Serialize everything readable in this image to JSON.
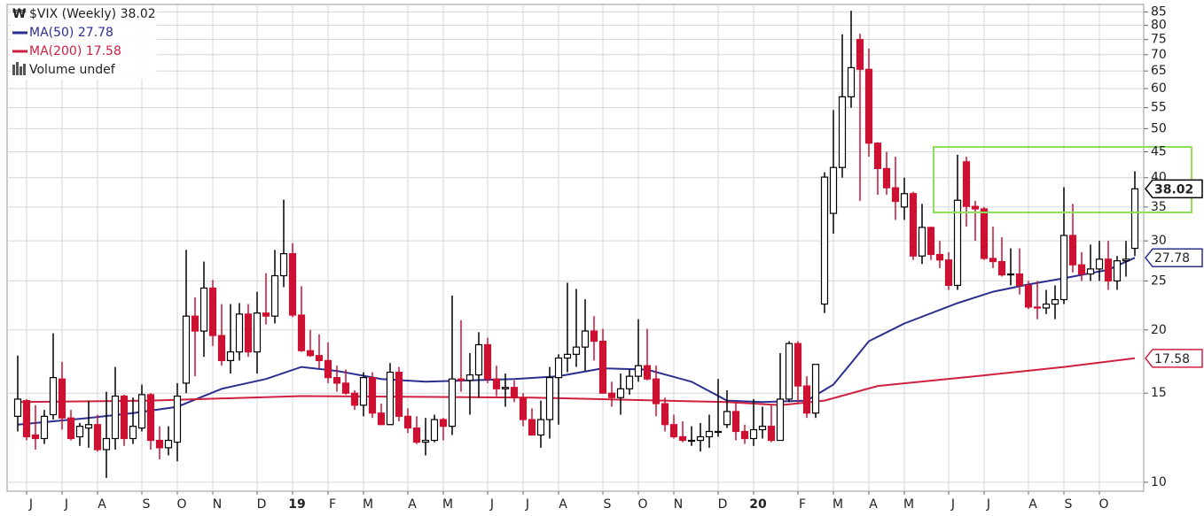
{
  "chart_data": {
    "type": "candlestick",
    "title": "$VIX (Weekly)",
    "volume_label": "Volume undef",
    "up_color": "#000000",
    "down_color": "#cc1133",
    "log_scale": true,
    "grid": true,
    "ylim": [
      9.6,
      88
    ],
    "yticks": [
      10,
      15,
      20,
      25,
      30,
      35,
      40,
      45,
      50,
      55,
      60,
      65,
      70,
      75,
      80,
      85
    ],
    "categories": [
      null,
      "J",
      null,
      null,
      null,
      "J",
      null,
      null,
      null,
      "A",
      null,
      null,
      null,
      null,
      "S",
      null,
      null,
      null,
      "O",
      null,
      null,
      null,
      "N",
      null,
      null,
      null,
      null,
      "D",
      null,
      null,
      null,
      "19",
      null,
      null,
      null,
      "F",
      null,
      null,
      null,
      "M",
      null,
      null,
      null,
      null,
      "A",
      null,
      null,
      null,
      "M",
      null,
      null,
      null,
      null,
      "J",
      null,
      null,
      null,
      "J",
      null,
      null,
      null,
      "A",
      null,
      null,
      null,
      null,
      "S",
      null,
      null,
      null,
      "O",
      null,
      null,
      null,
      "N",
      null,
      null,
      null,
      null,
      "D",
      null,
      null,
      null,
      "20",
      null,
      null,
      null,
      null,
      "F",
      null,
      null,
      null,
      "M",
      null,
      null,
      null,
      "A",
      null,
      null,
      null,
      "M",
      null,
      null,
      null,
      null,
      "J",
      null,
      null,
      null,
      "J",
      null,
      null,
      null,
      null,
      "A",
      null,
      null,
      null,
      "S",
      null,
      null,
      null,
      "O",
      null,
      null,
      null,
      null
    ],
    "ohlc": [
      [
        13.5,
        17.8,
        12.6,
        14.6
      ],
      [
        14.5,
        14.6,
        12.1,
        12.3
      ],
      [
        12.4,
        14.2,
        11.6,
        12.2
      ],
      [
        12.2,
        13.9,
        11.9,
        13.5
      ],
      [
        13.6,
        19.7,
        13.3,
        16.1
      ],
      [
        16.0,
        17.3,
        12.7,
        13.4
      ],
      [
        13.4,
        13.9,
        12.1,
        12.2
      ],
      [
        12.3,
        13.1,
        11.8,
        12.9
      ],
      [
        12.8,
        14.5,
        11.7,
        13.0
      ],
      [
        13.0,
        13.6,
        11.5,
        11.6
      ],
      [
        11.6,
        15.1,
        10.2,
        12.2
      ],
      [
        12.2,
        16.9,
        11.6,
        14.8
      ],
      [
        14.8,
        14.9,
        11.8,
        12.2
      ],
      [
        12.2,
        14.7,
        11.9,
        12.9
      ],
      [
        12.8,
        15.6,
        12.6,
        14.9
      ],
      [
        14.9,
        15.0,
        11.6,
        12.1
      ],
      [
        12.1,
        12.9,
        11.1,
        11.7
      ],
      [
        11.7,
        12.9,
        11.3,
        12.1
      ],
      [
        12.0,
        15.7,
        11.0,
        14.8
      ],
      [
        15.7,
        28.8,
        15.0,
        21.3
      ],
      [
        21.3,
        23.2,
        16.2,
        19.9
      ],
      [
        19.9,
        27.3,
        17.7,
        24.2
      ],
      [
        24.2,
        25.1,
        18.6,
        19.5
      ],
      [
        19.5,
        22.5,
        17.0,
        17.4
      ],
      [
        17.4,
        22.5,
        16.4,
        18.1
      ],
      [
        18.1,
        22.6,
        17.4,
        21.5
      ],
      [
        21.5,
        22.5,
        17.7,
        18.1
      ],
      [
        18.1,
        23.8,
        16.4,
        21.6
      ],
      [
        21.6,
        25.9,
        20.5,
        21.3
      ],
      [
        21.3,
        28.8,
        20.6,
        25.6
      ],
      [
        25.6,
        36.2,
        24.3,
        28.3
      ],
      [
        28.3,
        29.7,
        21.2,
        21.4
      ],
      [
        21.4,
        24.4,
        18.1,
        18.2
      ],
      [
        18.2,
        20.0,
        17.7,
        17.8
      ],
      [
        17.8,
        19.6,
        16.8,
        17.4
      ],
      [
        17.4,
        18.9,
        15.7,
        16.1
      ],
      [
        16.1,
        17.0,
        15.1,
        15.7
      ],
      [
        15.7,
        16.7,
        14.9,
        15.0
      ],
      [
        15.0,
        15.2,
        13.9,
        14.2
      ],
      [
        14.2,
        16.5,
        13.5,
        16.1
      ],
      [
        16.1,
        16.5,
        13.4,
        13.7
      ],
      [
        13.7,
        14.3,
        13.0,
        13.0
      ],
      [
        13.0,
        17.2,
        13.0,
        16.5
      ],
      [
        16.5,
        16.9,
        13.2,
        13.5
      ],
      [
        13.5,
        14.0,
        12.5,
        12.8
      ],
      [
        12.8,
        13.5,
        11.9,
        12.0
      ],
      [
        12.0,
        13.4,
        11.3,
        12.1
      ],
      [
        12.1,
        13.6,
        12.0,
        13.3
      ],
      [
        13.3,
        13.4,
        12.1,
        12.9
      ],
      [
        12.9,
        23.4,
        12.4,
        16.0
      ],
      [
        16.0,
        20.9,
        15.1,
        15.9
      ],
      [
        15.9,
        18.0,
        13.6,
        16.3
      ],
      [
        16.3,
        19.8,
        14.7,
        18.7
      ],
      [
        18.7,
        19.3,
        15.7,
        16.0
      ],
      [
        16.0,
        17.0,
        14.8,
        15.3
      ],
      [
        15.3,
        16.4,
        14.1,
        15.4
      ],
      [
        15.4,
        15.9,
        14.4,
        14.7
      ],
      [
        14.7,
        15.0,
        12.9,
        13.3
      ],
      [
        13.3,
        14.0,
        12.4,
        12.4
      ],
      [
        12.4,
        14.5,
        11.7,
        13.3
      ],
      [
        13.3,
        16.9,
        12.2,
        16.1
      ],
      [
        16.1,
        17.9,
        13.0,
        17.6
      ],
      [
        17.6,
        24.8,
        16.5,
        17.9
      ],
      [
        17.9,
        24.1,
        16.9,
        18.5
      ],
      [
        18.5,
        23.0,
        16.6,
        19.9
      ],
      [
        19.9,
        21.3,
        17.4,
        19.0
      ],
      [
        19.0,
        20.1,
        15.0,
        15.0
      ],
      [
        15.0,
        15.8,
        14.1,
        14.7
      ],
      [
        14.7,
        16.4,
        13.6,
        15.3
      ],
      [
        15.3,
        16.7,
        14.9,
        16.2
      ],
      [
        16.2,
        21.0,
        15.8,
        17.0
      ],
      [
        17.0,
        20.1,
        15.9,
        16.0
      ],
      [
        16.0,
        17.0,
        13.5,
        14.3
      ],
      [
        14.3,
        14.7,
        12.6,
        13.0
      ],
      [
        13.0,
        13.6,
        12.2,
        12.3
      ],
      [
        12.3,
        13.2,
        12.0,
        12.1
      ],
      [
        12.1,
        12.9,
        11.8,
        12.1
      ],
      [
        12.1,
        13.1,
        11.5,
        12.3
      ],
      [
        12.3,
        13.6,
        11.7,
        12.6
      ],
      [
        12.6,
        16.0,
        12.3,
        12.6
      ],
      [
        13.0,
        15.2,
        12.8,
        13.8
      ],
      [
        13.8,
        14.4,
        12.1,
        12.6
      ],
      [
        12.6,
        13.0,
        11.9,
        12.2
      ],
      [
        12.2,
        14.6,
        11.8,
        12.7
      ],
      [
        12.7,
        14.1,
        12.2,
        12.9
      ],
      [
        12.9,
        14.2,
        12.0,
        12.1
      ],
      [
        12.1,
        18.0,
        12.1,
        14.6
      ],
      [
        14.6,
        19.0,
        14.4,
        18.8
      ],
      [
        18.8,
        19.0,
        14.3,
        15.5
      ],
      [
        15.5,
        16.2,
        13.4,
        13.7
      ],
      [
        13.7,
        17.1,
        13.4,
        17.1
      ],
      [
        22.5,
        41.0,
        21.6,
        40.1
      ],
      [
        34.0,
        54.4,
        31.0,
        41.9
      ],
      [
        41.9,
        76.8,
        40.0,
        57.8
      ],
      [
        57.8,
        85.5,
        55.0,
        66.0
      ],
      [
        75.0,
        77.0,
        36.0,
        65.5
      ],
      [
        65.5,
        72.0,
        44.0,
        46.8
      ],
      [
        46.8,
        47.0,
        37.0,
        41.7
      ],
      [
        41.7,
        45.0,
        37.0,
        38.2
      ],
      [
        38.2,
        44.0,
        33.0,
        35.9
      ],
      [
        35.0,
        40.0,
        33.0,
        37.2
      ],
      [
        37.2,
        37.5,
        27.5,
        28.0
      ],
      [
        28.0,
        35.5,
        27.0,
        31.9
      ],
      [
        31.9,
        32.0,
        27.5,
        28.2
      ],
      [
        28.2,
        30.0,
        26.5,
        27.5
      ],
      [
        27.5,
        28.5,
        24.0,
        24.5
      ],
      [
        24.5,
        44.4,
        24.0,
        36.1
      ],
      [
        43.0,
        44.0,
        32.0,
        35.1
      ],
      [
        35.1,
        36.0,
        30.0,
        34.7
      ],
      [
        34.7,
        35.0,
        27.5,
        27.7
      ],
      [
        27.7,
        32.0,
        26.5,
        27.3
      ],
      [
        27.3,
        30.5,
        25.5,
        25.7
      ],
      [
        25.7,
        29.0,
        24.5,
        25.8
      ],
      [
        25.8,
        29.0,
        23.5,
        24.5
      ],
      [
        24.5,
        25.0,
        22.0,
        22.2
      ],
      [
        22.2,
        25.0,
        21.0,
        22.1
      ],
      [
        22.1,
        24.0,
        21.5,
        22.5
      ],
      [
        22.5,
        24.5,
        21.0,
        22.96
      ],
      [
        22.96,
        38.3,
        22.5,
        30.75
      ],
      [
        30.75,
        35.5,
        26.0,
        26.9
      ],
      [
        26.9,
        28.5,
        25.0,
        25.8
      ],
      [
        25.8,
        29.5,
        25.0,
        26.4
      ],
      [
        26.4,
        30.0,
        25.0,
        27.6
      ],
      [
        27.6,
        30.0,
        24.0,
        25.0
      ],
      [
        25.0,
        28.0,
        24.0,
        27.4
      ],
      [
        27.4,
        30.0,
        25.5,
        27.6
      ],
      [
        29.0,
        41.2,
        28.0,
        38.02
      ]
    ],
    "series": [
      {
        "name": "MA(50)",
        "color": "#2b2f8f",
        "x": [
          0,
          8,
          13,
          18,
          23,
          28,
          32,
          36,
          41,
          46,
          51,
          56,
          61,
          66,
          71,
          76,
          80,
          84,
          89,
          92,
          94,
          96,
          100,
          106,
          110,
          114,
          118,
          123,
          126
        ],
        "values": [
          13.0,
          13.4,
          13.7,
          14.1,
          15.3,
          16.0,
          16.9,
          16.6,
          16.0,
          15.8,
          15.9,
          16.0,
          16.2,
          16.8,
          16.7,
          15.8,
          14.5,
          14.4,
          14.5,
          15.6,
          17.2,
          19.0,
          20.6,
          22.6,
          23.8,
          24.6,
          25.3,
          26.3,
          27.78
        ]
      },
      {
        "name": "MA(200)",
        "color": "#d02040",
        "x": [
          0,
          15,
          32,
          58,
          80,
          86,
          91,
          97,
          108,
          118,
          126
        ],
        "values": [
          14.4,
          14.5,
          14.8,
          14.7,
          14.4,
          14.2,
          14.5,
          15.5,
          16.2,
          16.9,
          17.58
        ]
      }
    ]
  }
}
